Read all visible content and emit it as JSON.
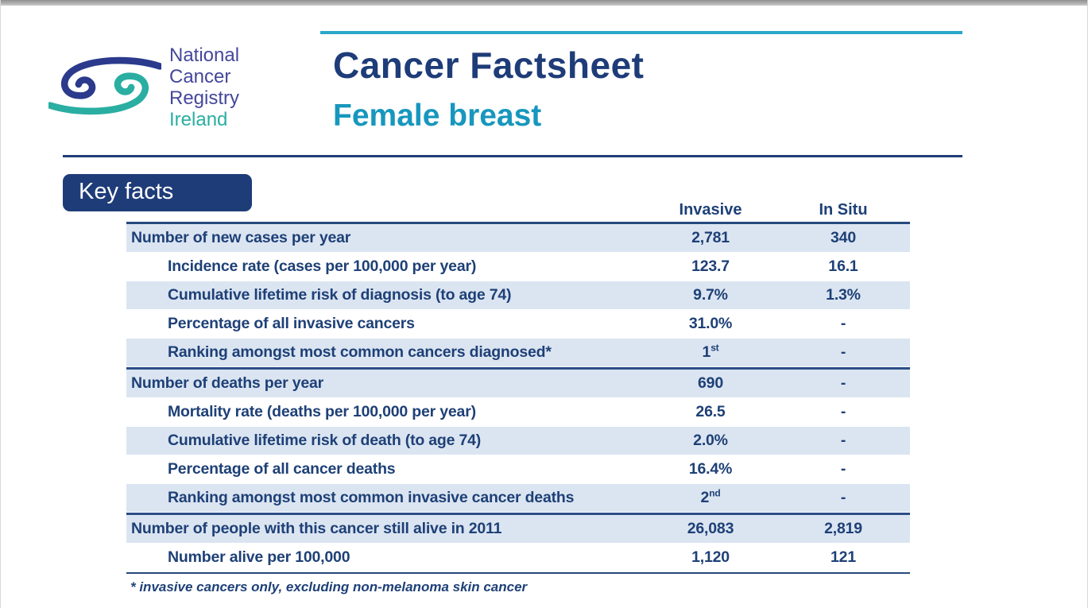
{
  "brand": {
    "navy": "#1e3c78",
    "teal_accent": "#2aa8c8",
    "subtitle_teal": "#1797bd",
    "logo_navy": "#2b3a8c",
    "logo_teal": "#2aaea2",
    "logo_text_color": "#45479b",
    "row_blue": "#dbe5f1"
  },
  "logo": {
    "org_line1": "National",
    "org_line2": "Cancer",
    "org_line3": "Registry",
    "country": "Ireland",
    "swirl_icon": "eye-swirl-icon"
  },
  "header": {
    "title": "Cancer Factsheet",
    "subtitle": "Female breast"
  },
  "key_facts_label": "Key facts",
  "table": {
    "columns": {
      "invasive": "Invasive",
      "insitu": "In Situ"
    },
    "sections": [
      {
        "rows": [
          {
            "label": "Number of new cases per year",
            "indent": false,
            "invasive": "2,781",
            "insitu": "340"
          },
          {
            "label": "Incidence rate (cases per 100,000 per year)",
            "indent": true,
            "invasive": "123.7",
            "insitu": "16.1"
          },
          {
            "label": "Cumulative lifetime risk of diagnosis (to age 74)",
            "indent": true,
            "invasive": "9.7%",
            "insitu": "1.3%"
          },
          {
            "label": "Percentage of all invasive cancers",
            "indent": true,
            "invasive": "31.0%",
            "insitu": "-"
          },
          {
            "label": "Ranking amongst most common cancers diagnosed*",
            "indent": true,
            "invasive": "1",
            "invasive_sup": "st",
            "insitu": "-"
          }
        ]
      },
      {
        "rows": [
          {
            "label": "Number of deaths per year",
            "indent": false,
            "invasive": "690",
            "insitu": "-"
          },
          {
            "label": "Mortality rate (deaths per 100,000 per year)",
            "indent": true,
            "invasive": "26.5",
            "insitu": "-"
          },
          {
            "label": "Cumulative lifetime risk of death (to age 74)",
            "indent": true,
            "invasive": "2.0%",
            "insitu": "-"
          },
          {
            "label": "Percentage of all cancer deaths",
            "indent": true,
            "invasive": "16.4%",
            "insitu": "-"
          },
          {
            "label": "Ranking amongst most common invasive cancer deaths",
            "indent": true,
            "invasive": "2",
            "invasive_sup": "nd",
            "insitu": "-"
          }
        ]
      },
      {
        "rows": [
          {
            "label": "Number of people with this cancer still alive in 2011",
            "indent": false,
            "invasive": "26,083",
            "insitu": "2,819"
          },
          {
            "label": "Number alive per 100,000",
            "indent": true,
            "invasive": "1,120",
            "insitu": "121"
          }
        ]
      }
    ],
    "footnote": "* invasive cancers only, excluding non-melanoma skin cancer"
  }
}
